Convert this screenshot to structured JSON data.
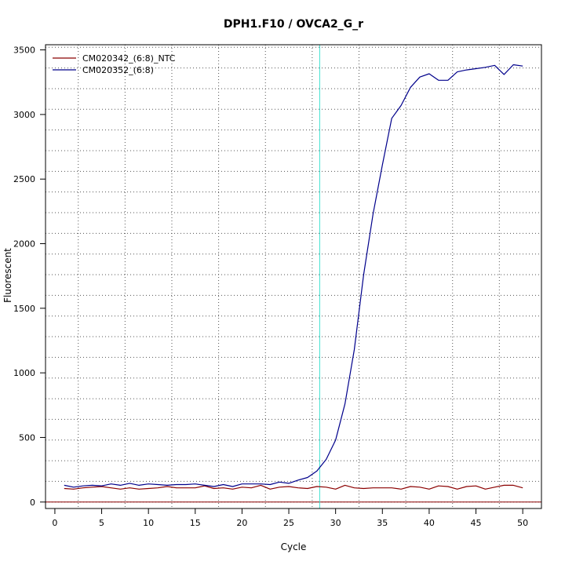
{
  "chart_data": {
    "type": "line",
    "title": "DPH1.F10 / OVCA2_G_r",
    "xlabel": "Cycle",
    "ylabel": "Fluorescent",
    "xlim": [
      -1,
      52
    ],
    "ylim": [
      -50,
      3540
    ],
    "x_ticks": [
      0,
      5,
      10,
      15,
      20,
      25,
      30,
      35,
      40,
      45,
      50
    ],
    "x_tick_labels": [
      "0",
      "5",
      "10",
      "15",
      "20",
      "25",
      "30",
      "35",
      "40",
      "45",
      "50"
    ],
    "y_ticks": [
      0,
      500,
      1000,
      1500,
      2000,
      2500,
      3000,
      3500
    ],
    "y_tick_labels": [
      "0",
      "500",
      "1000",
      "1500",
      "2000",
      "2500",
      "3000",
      "3500"
    ],
    "x_grid": [
      2.5,
      7.5,
      12.5,
      17.5,
      22.5,
      27.5,
      32.5,
      37.5,
      42.5,
      47.5
    ],
    "y_grid": [
      0,
      160,
      320,
      480,
      640,
      800,
      960,
      1120,
      1280,
      1440,
      1600,
      1760,
      1920,
      2080,
      2240,
      2400,
      2560,
      2720,
      2880,
      3040,
      3200,
      3360,
      3520
    ],
    "grid": true,
    "threshold_x": 28.3,
    "threshold_color": "#40e0d0",
    "baseline_y": 0,
    "baseline_color": "#8b0000",
    "legend_position": "top-left",
    "x": [
      1,
      2,
      3,
      4,
      5,
      6,
      7,
      8,
      9,
      10,
      11,
      12,
      13,
      14,
      15,
      16,
      17,
      18,
      19,
      20,
      21,
      22,
      23,
      24,
      25,
      26,
      27,
      28,
      29,
      30,
      31,
      32,
      33,
      34,
      35,
      36,
      37,
      38,
      39,
      40,
      41,
      42,
      43,
      44,
      45,
      46,
      47,
      48,
      49,
      50
    ],
    "series": [
      {
        "name": "CM020342_(6:8)_NTC",
        "color": "#8b0000",
        "values": [
          105,
          100,
          110,
          115,
          120,
          110,
          100,
          110,
          100,
          105,
          110,
          120,
          110,
          110,
          110,
          125,
          105,
          110,
          100,
          115,
          110,
          130,
          100,
          115,
          120,
          110,
          105,
          120,
          115,
          100,
          130,
          110,
          105,
          110,
          110,
          110,
          100,
          120,
          115,
          100,
          125,
          120,
          100,
          120,
          125,
          100,
          115,
          130,
          130,
          110
        ]
      },
      {
        "name": "CM020352_(6:8)",
        "color": "#00008b",
        "values": [
          130,
          115,
          125,
          130,
          125,
          140,
          130,
          145,
          130,
          140,
          135,
          130,
          135,
          135,
          140,
          130,
          120,
          135,
          120,
          140,
          140,
          140,
          135,
          155,
          145,
          170,
          190,
          240,
          330,
          480,
          760,
          1180,
          1760,
          2230,
          2610,
          2970,
          3070,
          3210,
          3290,
          3315,
          3265,
          3265,
          3330,
          3345,
          3355,
          3365,
          3380,
          3310,
          3385,
          3375
        ]
      }
    ]
  }
}
